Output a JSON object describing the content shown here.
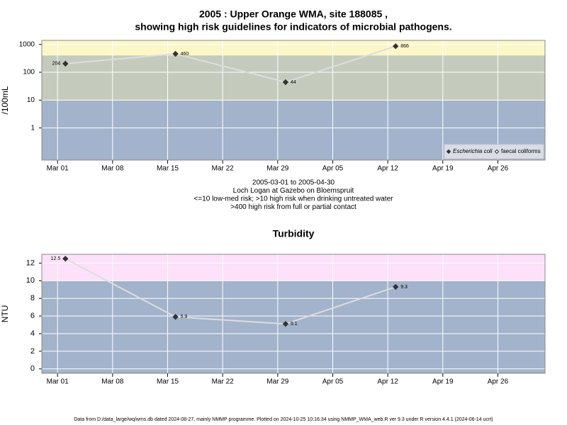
{
  "chart_data": [
    {
      "type": "line",
      "title": [
        "2005 : Upper Orange WMA, site 188085 ,",
        "showing high risk guidelines for indicators of microbial pathogens."
      ],
      "notes": [
        "2005-03-01 to 2005-04-30",
        "Loch Logan at Gazebo on Bloemspruit",
        "<=10 low-med risk; >10 high risk when drinking untreated water",
        ">400 high risk from full or partial contact"
      ],
      "ylabel": "/100mL",
      "log_scale": true,
      "ylim": [
        0.07,
        1400
      ],
      "yticks": [
        1,
        10,
        100,
        1000
      ],
      "xlim": [
        "2005-02-27",
        "2005-05-02"
      ],
      "xticks": [
        {
          "value": "2005-03-01",
          "label": "Mar 01"
        },
        {
          "value": "2005-03-08",
          "label": "Mar 08"
        },
        {
          "value": "2005-03-15",
          "label": "Mar 15"
        },
        {
          "value": "2005-03-22",
          "label": "Mar 22"
        },
        {
          "value": "2005-03-29",
          "label": "Mar 29"
        },
        {
          "value": "2005-04-05",
          "label": "Apr 05"
        },
        {
          "value": "2005-04-12",
          "label": "Apr 12"
        },
        {
          "value": "2005-04-19",
          "label": "Apr 19"
        },
        {
          "value": "2005-04-26",
          "label": "Apr 26"
        }
      ],
      "grid": true,
      "bands": [
        {
          "from": 10,
          "color": "#a3b3cc"
        },
        {
          "from": 400,
          "color": "#fdf7c8"
        }
      ],
      "band_base_color": "#a3b3cc",
      "band_mid": {
        "from": 10,
        "to": 400,
        "color": "#c4cbbd"
      },
      "x": [
        "2005-03-02",
        "2005-03-16",
        "2005-03-30",
        "2005-04-13"
      ],
      "series": [
        {
          "name": "Escherichia coli",
          "color": "#333333",
          "marker": "filled",
          "values": [
            204,
            460,
            44,
            866
          ]
        },
        {
          "name": "faecal coliforms",
          "color": "#333333",
          "marker": "hollow",
          "values": [
            null,
            null,
            null,
            null
          ]
        }
      ],
      "legend": "bottom-right"
    },
    {
      "type": "line",
      "title": [
        "Turbidity"
      ],
      "ylabel": "NTU",
      "log_scale": false,
      "ylim": [
        -0.5,
        13
      ],
      "yticks": [
        0,
        2,
        4,
        6,
        8,
        10,
        12
      ],
      "xlim": [
        "2005-02-27",
        "2005-05-02"
      ],
      "xticks": [
        {
          "value": "2005-03-01",
          "label": "Mar 01"
        },
        {
          "value": "2005-03-08",
          "label": "Mar 08"
        },
        {
          "value": "2005-03-15",
          "label": "Mar 15"
        },
        {
          "value": "2005-03-22",
          "label": "Mar 22"
        },
        {
          "value": "2005-03-29",
          "label": "Mar 29"
        },
        {
          "value": "2005-04-05",
          "label": "Apr 05"
        },
        {
          "value": "2005-04-12",
          "label": "Apr 12"
        },
        {
          "value": "2005-04-19",
          "label": "Apr 19"
        },
        {
          "value": "2005-04-26",
          "label": "Apr 26"
        }
      ],
      "grid": true,
      "bands": [
        {
          "from": 10,
          "color": "#fde0fa"
        }
      ],
      "band_base_color": "#a3b3cc",
      "x": [
        "2005-03-02",
        "2005-03-16",
        "2005-03-30",
        "2005-04-13"
      ],
      "series": [
        {
          "name": "Turbidity",
          "color": "#333333",
          "marker": "filled",
          "values": [
            12.5,
            5.9,
            5.1,
            9.3
          ]
        }
      ]
    }
  ],
  "footer": "Data from D:/data_large/wq/wms.db dated 2024-08-27, mainly NMMP programme. Plotted on 2024-10-25 10:16:34 using NMMP_WMA_web.R ver 9.3 under R version 4.4.1 (2024-06-14 ucrt)"
}
